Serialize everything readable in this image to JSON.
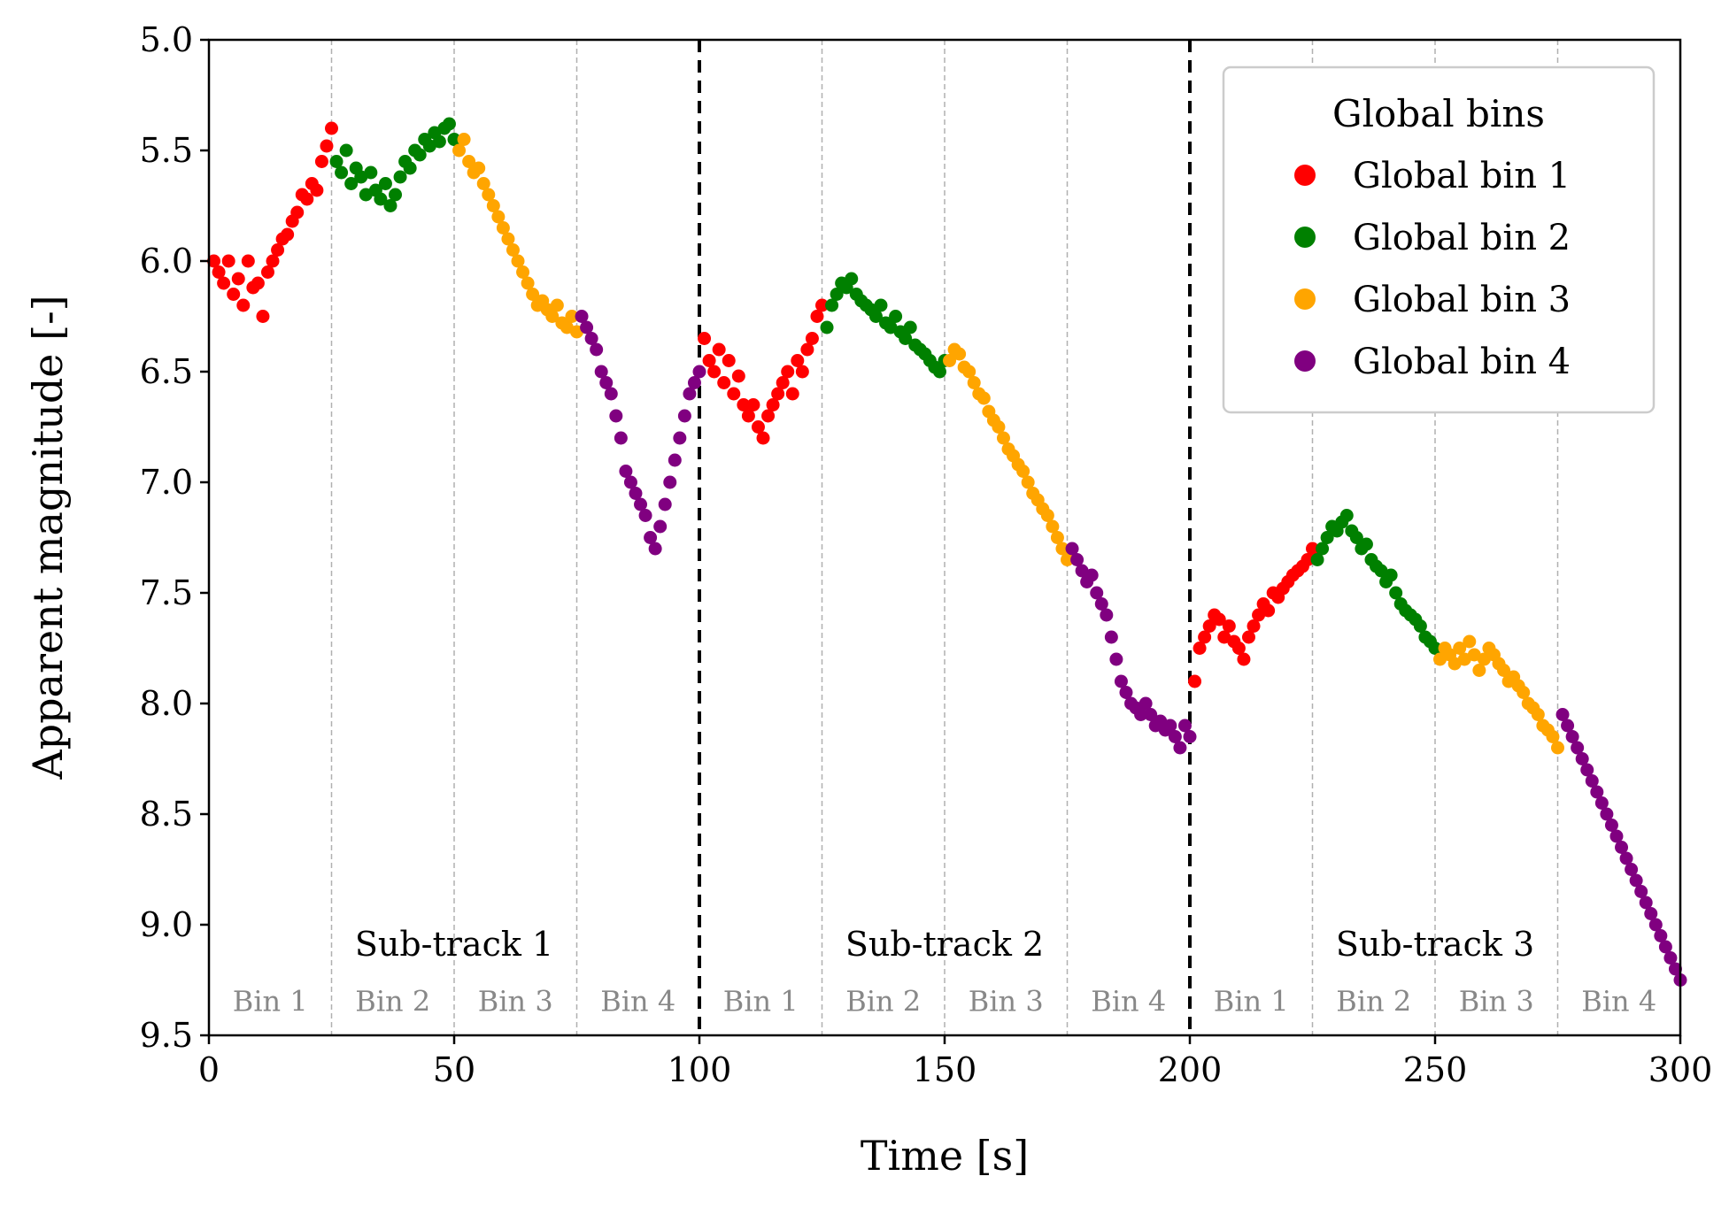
{
  "chart_data": {
    "type": "scatter",
    "title": "",
    "xlabel": "Time [s]",
    "ylabel": "Apparent magnitude [-]",
    "xlim": [
      0,
      300
    ],
    "ylim": [
      9.5,
      5.0
    ],
    "y_inverted": true,
    "xticks": [
      "0",
      "50",
      "100",
      "150",
      "200",
      "250",
      "300"
    ],
    "xtick_values": [
      0,
      50,
      100,
      150,
      200,
      250,
      300
    ],
    "yticks": [
      "5.0",
      "5.5",
      "6.0",
      "6.5",
      "7.0",
      "7.5",
      "8.0",
      "8.5",
      "9.0",
      "9.5"
    ],
    "ytick_values": [
      5.0,
      5.5,
      6.0,
      6.5,
      7.0,
      7.5,
      8.0,
      8.5,
      9.0,
      9.5
    ],
    "subtrack_boundaries": [
      100,
      200
    ],
    "bin_boundaries": [
      25,
      50,
      75,
      125,
      150,
      175,
      225,
      250,
      275
    ],
    "subtracks": [
      {
        "label": "Sub-track 1",
        "center": 50
      },
      {
        "label": "Sub-track 2",
        "center": 150
      },
      {
        "label": "Sub-track 3",
        "center": 250
      }
    ],
    "bin_labels": [
      {
        "label": "Bin 1",
        "center": 12.5
      },
      {
        "label": "Bin 2",
        "center": 37.5
      },
      {
        "label": "Bin 3",
        "center": 62.5
      },
      {
        "label": "Bin 4",
        "center": 87.5
      },
      {
        "label": "Bin 1",
        "center": 112.5
      },
      {
        "label": "Bin 2",
        "center": 137.5
      },
      {
        "label": "Bin 3",
        "center": 162.5
      },
      {
        "label": "Bin 4",
        "center": 187.5
      },
      {
        "label": "Bin 1",
        "center": 212.5
      },
      {
        "label": "Bin 2",
        "center": 237.5
      },
      {
        "label": "Bin 3",
        "center": 262.5
      },
      {
        "label": "Bin 4",
        "center": 287.5
      }
    ],
    "legend": {
      "title": "Global bins",
      "position": "top-right",
      "entries": [
        "Global bin 1",
        "Global bin 2",
        "Global bin 3",
        "Global bin 4"
      ]
    },
    "series": [
      {
        "name": "Global bin 1",
        "color": "#ff0000",
        "x": [
          1,
          2,
          3,
          4,
          5,
          6,
          7,
          8,
          9,
          10,
          11,
          12,
          13,
          14,
          15,
          16,
          17,
          18,
          19,
          20,
          21,
          22,
          23,
          24,
          25,
          101,
          102,
          103,
          104,
          105,
          106,
          107,
          108,
          109,
          110,
          111,
          112,
          113,
          114,
          115,
          116,
          117,
          118,
          119,
          120,
          121,
          122,
          123,
          124,
          125,
          201,
          202,
          203,
          204,
          205,
          206,
          207,
          208,
          209,
          210,
          211,
          212,
          213,
          214,
          215,
          216,
          217,
          218,
          219,
          220,
          221,
          222,
          223,
          224,
          225
        ],
        "y": [
          6.0,
          6.05,
          6.1,
          6.0,
          6.15,
          6.08,
          6.2,
          6.0,
          6.12,
          6.1,
          6.25,
          6.05,
          6.0,
          5.95,
          5.9,
          5.88,
          5.82,
          5.78,
          5.7,
          5.72,
          5.65,
          5.68,
          5.55,
          5.48,
          5.4,
          6.35,
          6.45,
          6.5,
          6.4,
          6.55,
          6.45,
          6.6,
          6.52,
          6.65,
          6.7,
          6.65,
          6.75,
          6.8,
          6.7,
          6.65,
          6.6,
          6.55,
          6.5,
          6.6,
          6.45,
          6.5,
          6.4,
          6.35,
          6.25,
          6.2,
          7.9,
          7.75,
          7.7,
          7.65,
          7.6,
          7.62,
          7.7,
          7.65,
          7.72,
          7.75,
          7.8,
          7.7,
          7.65,
          7.6,
          7.55,
          7.58,
          7.5,
          7.52,
          7.48,
          7.45,
          7.42,
          7.4,
          7.38,
          7.35,
          7.3
        ]
      },
      {
        "name": "Global bin 2",
        "color": "#008000",
        "x": [
          26,
          27,
          28,
          29,
          30,
          31,
          32,
          33,
          34,
          35,
          36,
          37,
          38,
          39,
          40,
          41,
          42,
          43,
          44,
          45,
          46,
          47,
          48,
          49,
          50,
          126,
          127,
          128,
          129,
          130,
          131,
          132,
          133,
          134,
          135,
          136,
          137,
          138,
          139,
          140,
          141,
          142,
          143,
          144,
          145,
          146,
          147,
          148,
          149,
          150,
          226,
          227,
          228,
          229,
          230,
          231,
          232,
          233,
          234,
          235,
          236,
          237,
          238,
          239,
          240,
          241,
          242,
          243,
          244,
          245,
          246,
          247,
          248,
          249,
          250
        ],
        "y": [
          5.55,
          5.6,
          5.5,
          5.65,
          5.58,
          5.62,
          5.7,
          5.6,
          5.68,
          5.72,
          5.65,
          5.75,
          5.7,
          5.62,
          5.55,
          5.58,
          5.5,
          5.52,
          5.45,
          5.48,
          5.42,
          5.46,
          5.4,
          5.38,
          5.45,
          6.3,
          6.2,
          6.15,
          6.1,
          6.12,
          6.08,
          6.15,
          6.18,
          6.2,
          6.22,
          6.25,
          6.2,
          6.28,
          6.3,
          6.25,
          6.32,
          6.35,
          6.3,
          6.38,
          6.4,
          6.42,
          6.45,
          6.48,
          6.5,
          6.45,
          7.35,
          7.3,
          7.25,
          7.2,
          7.22,
          7.18,
          7.15,
          7.22,
          7.25,
          7.3,
          7.28,
          7.35,
          7.38,
          7.4,
          7.45,
          7.42,
          7.5,
          7.55,
          7.58,
          7.6,
          7.62,
          7.65,
          7.7,
          7.72,
          7.75
        ]
      },
      {
        "name": "Global bin 3",
        "color": "#ffa500",
        "x": [
          51,
          52,
          53,
          54,
          55,
          56,
          57,
          58,
          59,
          60,
          61,
          62,
          63,
          64,
          65,
          66,
          67,
          68,
          69,
          70,
          71,
          72,
          73,
          74,
          75,
          151,
          152,
          153,
          154,
          155,
          156,
          157,
          158,
          159,
          160,
          161,
          162,
          163,
          164,
          165,
          166,
          167,
          168,
          169,
          170,
          171,
          172,
          173,
          174,
          175,
          251,
          252,
          253,
          254,
          255,
          256,
          257,
          258,
          259,
          260,
          261,
          262,
          263,
          264,
          265,
          266,
          267,
          268,
          269,
          270,
          271,
          272,
          273,
          274,
          275
        ],
        "y": [
          5.5,
          5.45,
          5.55,
          5.6,
          5.58,
          5.65,
          5.7,
          5.75,
          5.8,
          5.85,
          5.9,
          5.95,
          6.0,
          6.05,
          6.1,
          6.15,
          6.2,
          6.18,
          6.22,
          6.25,
          6.2,
          6.28,
          6.3,
          6.25,
          6.32,
          6.45,
          6.4,
          6.42,
          6.48,
          6.5,
          6.55,
          6.6,
          6.62,
          6.68,
          6.72,
          6.75,
          6.8,
          6.85,
          6.88,
          6.92,
          6.95,
          7.0,
          7.05,
          7.08,
          7.12,
          7.15,
          7.2,
          7.25,
          7.3,
          7.35,
          7.8,
          7.75,
          7.78,
          7.82,
          7.75,
          7.8,
          7.72,
          7.78,
          7.85,
          7.8,
          7.75,
          7.78,
          7.82,
          7.85,
          7.9,
          7.88,
          7.92,
          7.95,
          8.0,
          8.02,
          8.05,
          8.1,
          8.12,
          8.15,
          8.2
        ]
      },
      {
        "name": "Global bin 4",
        "color": "#800080",
        "x": [
          76,
          77,
          78,
          79,
          80,
          81,
          82,
          83,
          84,
          85,
          86,
          87,
          88,
          89,
          90,
          91,
          92,
          93,
          94,
          95,
          96,
          97,
          98,
          99,
          100,
          176,
          177,
          178,
          179,
          180,
          181,
          182,
          183,
          184,
          185,
          186,
          187,
          188,
          189,
          190,
          191,
          192,
          193,
          194,
          195,
          196,
          197,
          198,
          199,
          200,
          276,
          277,
          278,
          279,
          280,
          281,
          282,
          283,
          284,
          285,
          286,
          287,
          288,
          289,
          290,
          291,
          292,
          293,
          294,
          295,
          296,
          297,
          298,
          299,
          300
        ],
        "y": [
          6.25,
          6.3,
          6.35,
          6.4,
          6.5,
          6.55,
          6.6,
          6.7,
          6.8,
          6.95,
          7.0,
          7.05,
          7.1,
          7.15,
          7.25,
          7.3,
          7.2,
          7.1,
          7.0,
          6.9,
          6.8,
          6.7,
          6.6,
          6.55,
          6.5,
          7.3,
          7.35,
          7.4,
          7.45,
          7.42,
          7.5,
          7.55,
          7.6,
          7.7,
          7.8,
          7.9,
          7.95,
          8.0,
          8.02,
          8.05,
          8.0,
          8.05,
          8.1,
          8.08,
          8.12,
          8.1,
          8.15,
          8.2,
          8.1,
          8.15,
          8.05,
          8.1,
          8.15,
          8.2,
          8.25,
          8.3,
          8.35,
          8.4,
          8.45,
          8.5,
          8.55,
          8.6,
          8.65,
          8.7,
          8.75,
          8.8,
          8.85,
          8.9,
          8.95,
          9.0,
          9.05,
          9.1,
          9.15,
          9.2,
          9.25
        ]
      }
    ]
  }
}
